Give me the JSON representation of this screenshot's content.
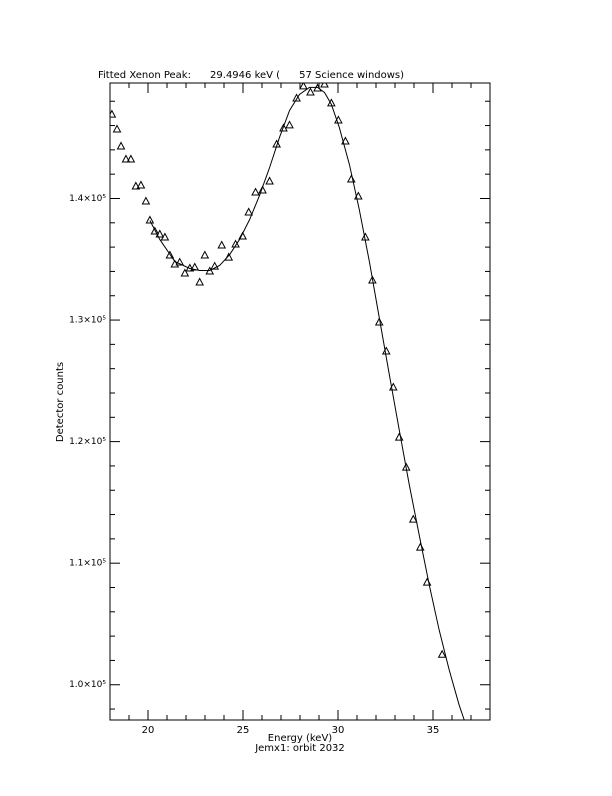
{
  "chart_data": {
    "type": "scatter",
    "title": "Fitted Xenon Peak:      29.4946 keV (      57 Science windows)",
    "xlabel": "Energy (keV)",
    "subtitle": "Jemx1: orbit 2032",
    "ylabel": "Detector counts",
    "xlim": [
      18,
      38
    ],
    "ylim": [
      97100,
      149500
    ],
    "xticks": [
      20,
      25,
      30,
      35
    ],
    "xminor_ticks": [
      18,
      19,
      21,
      22,
      23,
      24,
      26,
      27,
      28,
      29,
      31,
      32,
      33,
      34,
      36,
      37,
      38
    ],
    "yticks": [
      {
        "value": 100000,
        "label": "1.0×10⁵"
      },
      {
        "value": 110000,
        "label": "1.1×10⁵"
      },
      {
        "value": 120000,
        "label": "1.2×10⁵"
      },
      {
        "value": 130000,
        "label": "1.3×10⁵"
      },
      {
        "value": 140000,
        "label": "1.4×10⁵"
      }
    ],
    "yminor_ticks": [
      98000,
      102000,
      104000,
      106000,
      108000,
      112000,
      114000,
      116000,
      118000,
      122000,
      124000,
      126000,
      128000,
      132000,
      134000,
      136000,
      138000,
      142000,
      144000,
      146000,
      148000
    ],
    "series": [
      {
        "mode": "markers",
        "marker": "triangle",
        "color": "#000000",
        "x": [
          18.1,
          18.37,
          18.58,
          18.84,
          19.1,
          19.36,
          19.63,
          19.89,
          20.1,
          20.36,
          20.62,
          20.89,
          21.15,
          21.41,
          21.67,
          21.94,
          22.2,
          22.46,
          22.72,
          22.99,
          23.25,
          23.51,
          23.88,
          24.25,
          24.61,
          24.98,
          25.3,
          25.66,
          26.03,
          26.4,
          26.77,
          27.13,
          27.45,
          27.82,
          28.18,
          28.55,
          28.92,
          29.29,
          29.65,
          30.02,
          30.39,
          30.7,
          31.07,
          31.44,
          31.81,
          32.17,
          32.54,
          32.91,
          33.22,
          33.59,
          33.96,
          34.33,
          34.69,
          35.48
        ],
        "values": [
          146900,
          145680,
          144280,
          143210,
          143210,
          140990,
          141070,
          139750,
          138190,
          137280,
          137040,
          136790,
          135310,
          134570,
          134730,
          133830,
          134240,
          134320,
          133090,
          135310,
          133990,
          134400,
          136130,
          135140,
          136210,
          136870,
          138850,
          140490,
          140660,
          141400,
          144440,
          145760,
          146010,
          148230,
          149220,
          148720,
          149050,
          149380,
          147820,
          146420,
          144690,
          141560,
          140160,
          136790,
          133250,
          129800,
          127410,
          124450,
          120330,
          117860,
          113580,
          111280,
          108400,
          102470
        ]
      },
      {
        "mode": "line",
        "color": "#000000",
        "x": [
          20.1,
          20.62,
          21.41,
          22.2,
          22.72,
          23.25,
          23.77,
          24.3,
          24.82,
          25.35,
          25.87,
          26.4,
          26.92,
          27.45,
          27.97,
          28.5,
          28.92,
          29.29,
          29.65,
          30.07,
          30.6,
          31.12,
          31.65,
          32.17,
          32.7,
          33.22,
          33.75,
          34.27,
          34.8,
          35.32,
          35.85,
          36.37,
          36.64
        ],
        "values": [
          138190,
          136630,
          134820,
          134240,
          134080,
          134080,
          134490,
          135390,
          136630,
          138270,
          140250,
          142550,
          145020,
          147240,
          148560,
          149140,
          149140,
          148720,
          147740,
          145840,
          142800,
          139090,
          134820,
          130210,
          125520,
          120990,
          116460,
          112350,
          108230,
          104530,
          101230,
          98360,
          97120
        ]
      }
    ]
  }
}
